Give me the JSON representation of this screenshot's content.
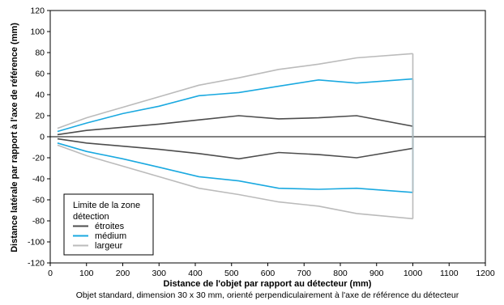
{
  "chart_data": {
    "type": "line",
    "title": "",
    "xlabel": "Distance de l'objet par rapport au détecteur (mm)",
    "ylabel": "Distance latérale par rapport à l'axe de référence (mm)",
    "caption": "Objet standard, dimension 30 x 30 mm, orienté perpendiculairement à l'axe de référence du détecteur",
    "xlim": [
      0,
      1200
    ],
    "ylim": [
      -120,
      120
    ],
    "xticks": [
      "0",
      "100",
      "200",
      "300",
      "400",
      "500",
      "600",
      "700",
      "800",
      "900",
      "1000",
      "1100",
      "1200"
    ],
    "yticks": [
      "120",
      "100",
      "80",
      "60",
      "40",
      "20",
      "0",
      "-20",
      "-40",
      "-60",
      "-80",
      "-100",
      "-120"
    ],
    "grid": false,
    "legend": {
      "title_line1": "Limite de la zone",
      "title_line2": "détection",
      "placement": "bottom-left"
    },
    "series": [
      {
        "name": "étroites",
        "color": "#4d4d4d",
        "upper": {
          "x": [
            20,
            100,
            200,
            300,
            410,
            520,
            630,
            740,
            845,
            1000
          ],
          "y": [
            2,
            6,
            9,
            12,
            16,
            20,
            17,
            18,
            20,
            10
          ]
        },
        "lower": {
          "x": [
            20,
            100,
            200,
            300,
            410,
            520,
            630,
            740,
            845,
            1000
          ],
          "y": [
            -2,
            -6,
            -9,
            -12,
            -16,
            -21,
            -15,
            -17,
            -20,
            -11
          ]
        }
      },
      {
        "name": "médium",
        "color": "#1aa9e0",
        "upper": {
          "x": [
            20,
            100,
            200,
            300,
            410,
            520,
            630,
            740,
            845,
            1000
          ],
          "y": [
            5,
            13,
            22,
            29,
            39,
            42,
            48,
            54,
            51,
            55
          ]
        },
        "lower": {
          "x": [
            20,
            100,
            200,
            300,
            410,
            520,
            630,
            740,
            845,
            1000
          ],
          "y": [
            -6,
            -14,
            -21,
            -29,
            -38,
            -42,
            -49,
            -50,
            -49,
            -53
          ]
        }
      },
      {
        "name": "largeur",
        "color": "#bbbbbb",
        "upper": {
          "x": [
            20,
            100,
            200,
            300,
            410,
            520,
            630,
            740,
            845,
            1000
          ],
          "y": [
            8,
            18,
            28,
            38,
            49,
            56,
            64,
            69,
            75,
            79
          ]
        },
        "lower": {
          "x": [
            20,
            100,
            200,
            300,
            410,
            520,
            630,
            740,
            845,
            1000
          ],
          "y": [
            -8,
            -18,
            -28,
            -38,
            -49,
            -55,
            -62,
            -66,
            -73,
            -78
          ]
        }
      }
    ]
  }
}
